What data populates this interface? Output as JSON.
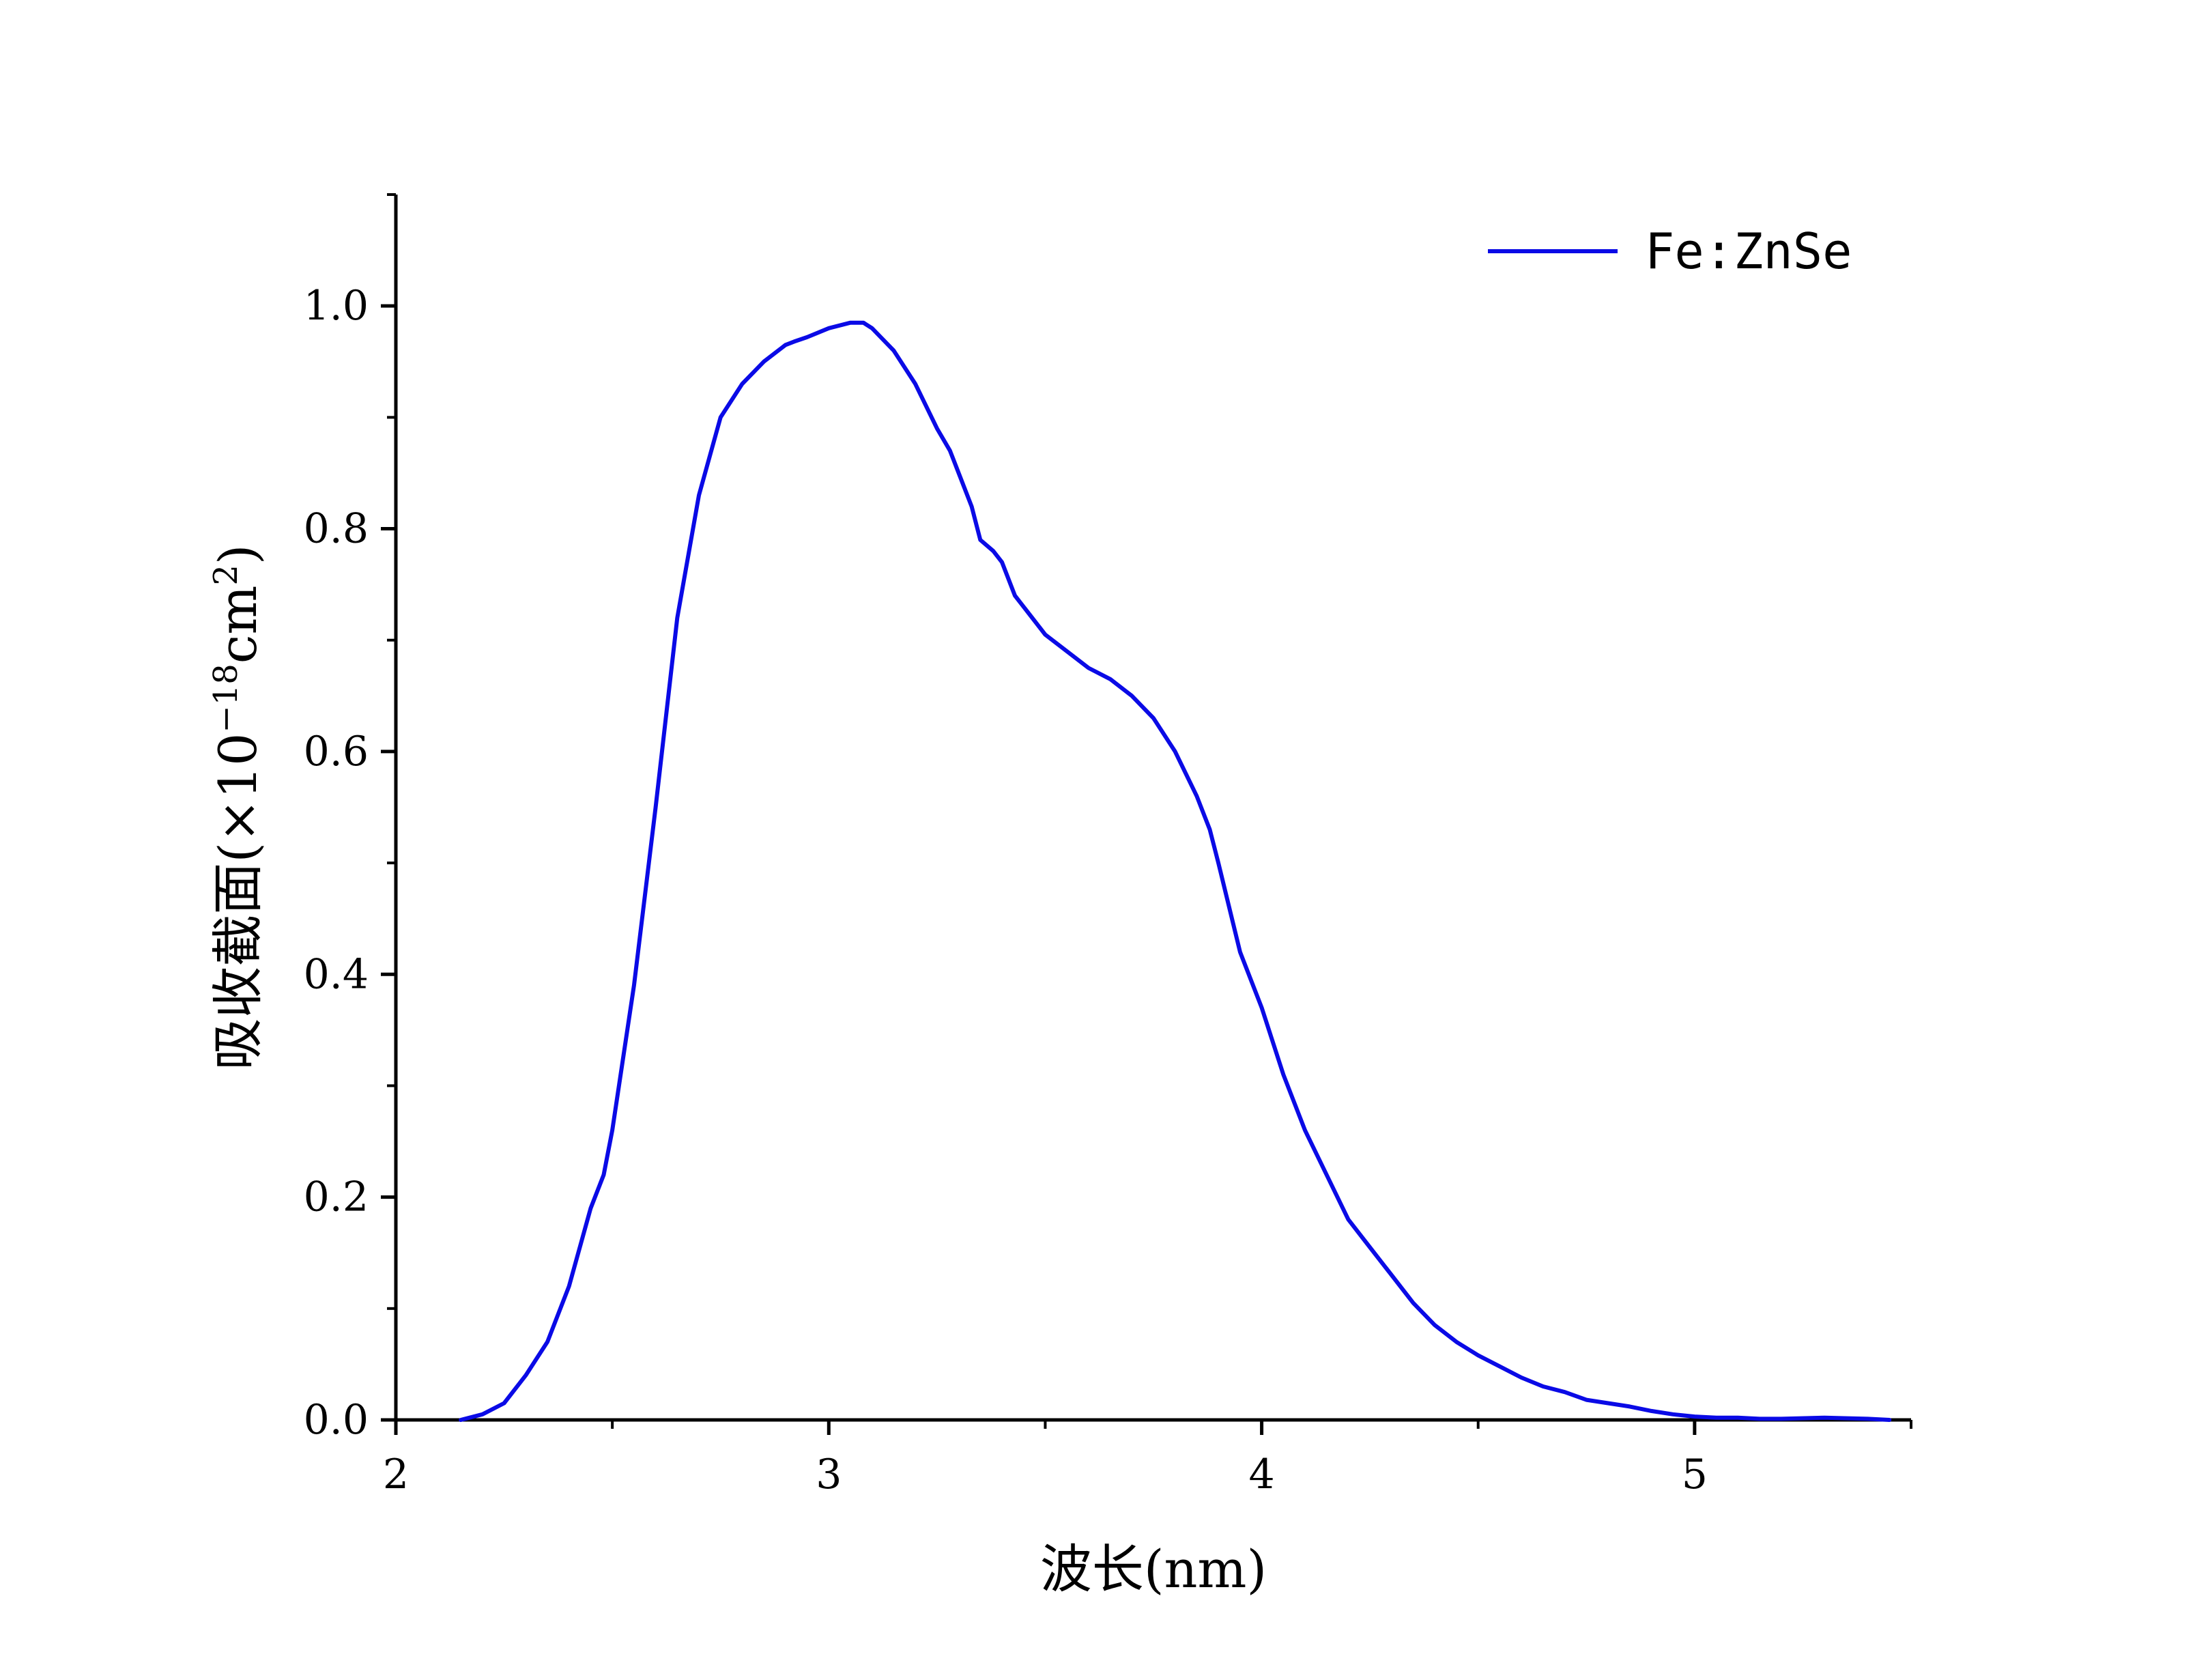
{
  "chart_data": {
    "type": "line",
    "title": "",
    "xlabel": "波长(nm)",
    "ylabel": {
      "prefix": "吸收截面(×10",
      "exp": "−18",
      "mid": "cm",
      "exp2": "2",
      "suffix": ")"
    },
    "xlim": [
      2,
      5.5
    ],
    "ylim": [
      0,
      1.1
    ],
    "x_ticks": [
      2,
      3,
      4,
      5
    ],
    "x_tick_labels": [
      "2",
      "3",
      "4",
      "5"
    ],
    "y_ticks": [
      0,
      0.2,
      0.4,
      0.6,
      0.8,
      1.0
    ],
    "y_tick_labels": [
      "0.0",
      "0.2",
      "0.4",
      "0.6",
      "0.8",
      "1.0"
    ],
    "legend_position": "top-right",
    "grid": false,
    "series": [
      {
        "name": "Fe:ZnSe",
        "color": "#0a0ae6",
        "x": [
          2.15,
          2.2,
          2.25,
          2.3,
          2.35,
          2.4,
          2.45,
          2.48,
          2.5,
          2.55,
          2.6,
          2.65,
          2.7,
          2.75,
          2.8,
          2.85,
          2.9,
          2.92,
          2.95,
          3.0,
          3.05,
          3.08,
          3.1,
          3.15,
          3.2,
          3.25,
          3.28,
          3.3,
          3.33,
          3.35,
          3.38,
          3.4,
          3.43,
          3.45,
          3.47,
          3.5,
          3.55,
          3.6,
          3.65,
          3.7,
          3.75,
          3.8,
          3.85,
          3.88,
          3.9,
          3.95,
          4.0,
          4.05,
          4.1,
          4.15,
          4.2,
          4.25,
          4.3,
          4.35,
          4.4,
          4.45,
          4.5,
          4.55,
          4.6,
          4.65,
          4.7,
          4.75,
          4.8,
          4.85,
          4.9,
          4.95,
          5.0,
          5.05,
          5.1,
          5.15,
          5.2,
          5.3,
          5.4,
          5.45
        ],
        "y": [
          0.0,
          0.005,
          0.015,
          0.04,
          0.07,
          0.12,
          0.19,
          0.22,
          0.26,
          0.39,
          0.55,
          0.72,
          0.83,
          0.9,
          0.93,
          0.95,
          0.965,
          0.968,
          0.972,
          0.98,
          0.985,
          0.985,
          0.98,
          0.96,
          0.93,
          0.89,
          0.87,
          0.85,
          0.82,
          0.79,
          0.78,
          0.77,
          0.74,
          0.73,
          0.72,
          0.705,
          0.69,
          0.675,
          0.665,
          0.65,
          0.63,
          0.6,
          0.56,
          0.53,
          0.5,
          0.42,
          0.37,
          0.31,
          0.26,
          0.22,
          0.18,
          0.155,
          0.13,
          0.105,
          0.085,
          0.07,
          0.058,
          0.048,
          0.038,
          0.03,
          0.025,
          0.018,
          0.015,
          0.012,
          0.008,
          0.005,
          0.003,
          0.002,
          0.002,
          0.001,
          0.001,
          0.002,
          0.001,
          0.0
        ]
      }
    ]
  }
}
